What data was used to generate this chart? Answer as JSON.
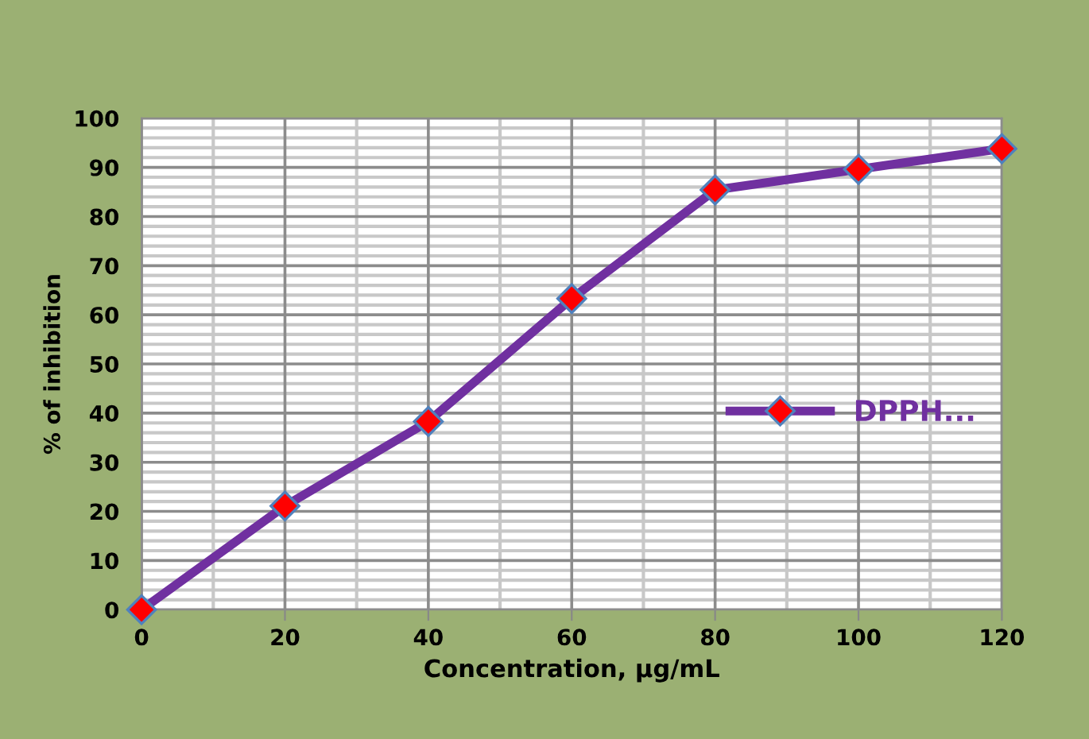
{
  "chart_data": {
    "type": "line",
    "xlabel": "Concentration, µg/mL",
    "ylabel": "% of inhibition",
    "x": [
      0,
      20,
      40,
      60,
      80,
      100,
      120
    ],
    "series": [
      {
        "name": "DPPH...",
        "color": "#7030a0",
        "values": [
          0,
          21.1,
          38.3,
          63.3,
          85.4,
          89.6,
          93.8
        ]
      }
    ],
    "xlim": [
      0,
      120
    ],
    "xticks": [
      0,
      20,
      40,
      60,
      80,
      100,
      120
    ],
    "ylim": [
      0,
      100
    ],
    "yticks": [
      0,
      10,
      20,
      30,
      40,
      50,
      60,
      70,
      80,
      90,
      100
    ],
    "grid": true,
    "legend": "right",
    "marker": "diamond",
    "line_style": "solid"
  }
}
